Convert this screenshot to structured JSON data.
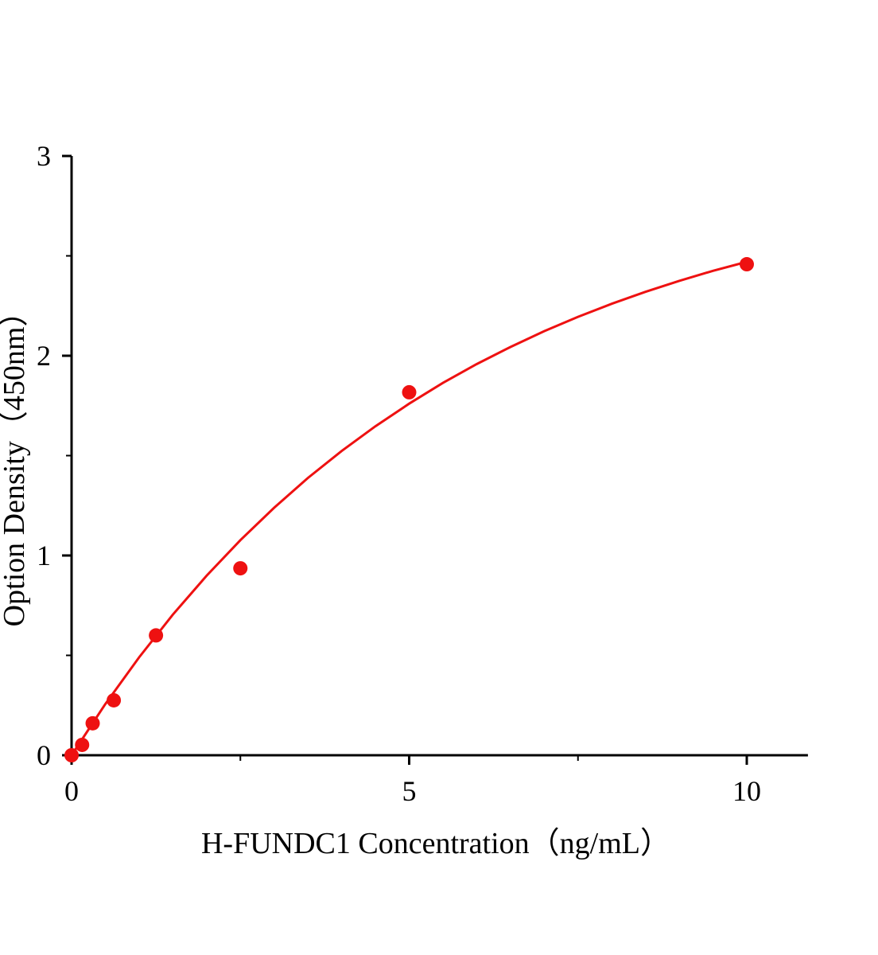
{
  "chart_data": {
    "type": "scatter",
    "title": "",
    "xlabel": "H-FUNDC1 Concentration（ng/mL）",
    "ylabel": "Option Density（450nm）",
    "xlim": [
      0,
      11
    ],
    "ylim": [
      0,
      3
    ],
    "xticks": [
      0,
      5,
      10
    ],
    "xtick_labels": [
      "0",
      "5",
      "10"
    ],
    "xminor": [
      2.5,
      7.5
    ],
    "yticks": [
      0,
      1,
      2,
      3
    ],
    "ytick_labels": [
      "0",
      "1",
      "2",
      "3"
    ],
    "yminor": [
      0.5,
      1.5,
      2.5
    ],
    "grid": false,
    "color": "#ee1111",
    "points": {
      "x": [
        0,
        0.156,
        0.3125,
        0.625,
        1.25,
        2.5,
        5,
        10
      ],
      "y": [
        0,
        0.052,
        0.16,
        0.275,
        0.6,
        0.936,
        1.817,
        2.458
      ]
    },
    "fit_curve": {
      "x": [
        0,
        0.5,
        1,
        1.5,
        2,
        2.5,
        3,
        3.5,
        4,
        4.5,
        5,
        5.5,
        6,
        6.5,
        7,
        7.5,
        8,
        8.5,
        9,
        9.5,
        10
      ],
      "y": [
        0,
        0.256,
        0.49,
        0.704,
        0.899,
        1.077,
        1.239,
        1.388,
        1.523,
        1.647,
        1.76,
        1.864,
        1.958,
        2.044,
        2.123,
        2.195,
        2.26,
        2.32,
        2.375,
        2.425,
        2.47
      ]
    }
  }
}
